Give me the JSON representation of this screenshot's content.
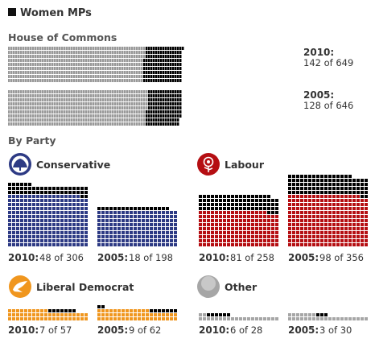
{
  "colors": {
    "women": "#000000",
    "commons_men": "#999999",
    "conservative": "#2d3a84",
    "labour": "#b50e12",
    "libdem": "#f0961e",
    "other": "#a6a6a6"
  },
  "chart_data": {
    "type": "waffle",
    "title": "Women MPs",
    "commons": {
      "title": "House of Commons",
      "rows": [
        {
          "year_label": "2010:",
          "women": 142,
          "total": 649,
          "count_text": "142 of 649"
        },
        {
          "year_label": "2005:",
          "women": 128,
          "total": 646,
          "count_text": "128 of 646"
        }
      ]
    },
    "by_party_title": "By Party",
    "parties": [
      {
        "name": "Conservative",
        "color_key": "conservative",
        "icon": "conservative-tree-logo-icon",
        "elections": [
          {
            "year_label": "2010:",
            "women": 48,
            "total": 306,
            "count_text": "48 of 306"
          },
          {
            "year_label": "2005:",
            "women": 18,
            "total": 198,
            "count_text": "18 of 198"
          }
        ]
      },
      {
        "name": "Labour",
        "color_key": "labour",
        "icon": "labour-rose-logo-icon",
        "elections": [
          {
            "year_label": "2010:",
            "women": 81,
            "total": 258,
            "count_text": "81 of 258"
          },
          {
            "year_label": "2005:",
            "women": 98,
            "total": 356,
            "count_text": "98 of 356"
          }
        ]
      },
      {
        "name": "Liberal Democrat",
        "color_key": "libdem",
        "icon": "libdem-bird-logo-icon",
        "elections": [
          {
            "year_label": "2010:",
            "women": 7,
            "total": 57,
            "count_text": "7 of 57"
          },
          {
            "year_label": "2005:",
            "women": 9,
            "total": 62,
            "count_text": "9 of 62"
          }
        ]
      },
      {
        "name": "Other",
        "color_key": "other",
        "icon": "other-party-circle-icon",
        "elections": [
          {
            "year_label": "2010:",
            "women": 6,
            "total": 28,
            "count_text": "6 of 28"
          },
          {
            "year_label": "2005:",
            "women": 3,
            "total": 30,
            "count_text": "3 of 30"
          }
        ]
      }
    ]
  }
}
